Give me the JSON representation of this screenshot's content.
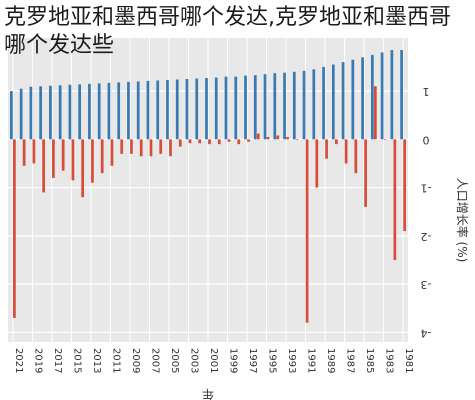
{
  "page": {
    "title": "克罗地亚和墨西哥哪个发达,克罗地亚和墨西哥哪个发达些"
  },
  "chart_data": {
    "type": "bar",
    "orientation": "rotated-180",
    "xlabel": "年",
    "ylabel": "人口增长率 (%)",
    "ylim": [
      -4.2,
      2.1
    ],
    "yticks": [
      -4,
      -3,
      -2,
      -1,
      0,
      1
    ],
    "grid": true,
    "colors": {
      "background": "#e8e8e8",
      "grid": "#ffffff",
      "series_blue": "#3a7ab0",
      "series_red": "#d64e3a",
      "axis_text": "#333333"
    },
    "categories": [
      "1981",
      "1982",
      "1983",
      "1984",
      "1985",
      "1986",
      "1987",
      "1988",
      "1989",
      "1990",
      "1991",
      "1992",
      "1993",
      "1994",
      "1995",
      "1996",
      "1997",
      "1998",
      "1999",
      "2000",
      "2001",
      "2002",
      "2003",
      "2004",
      "2005",
      "2006",
      "2007",
      "2008",
      "2009",
      "2010",
      "2011",
      "2012",
      "2013",
      "2014",
      "2015",
      "2016",
      "2017",
      "2018",
      "2019",
      "2020",
      "2021"
    ],
    "x_tick_labels": [
      "1981",
      "1983",
      "1985",
      "1987",
      "1989",
      "1991",
      "1993",
      "1995",
      "1997",
      "1999",
      "2001",
      "2003",
      "2005",
      "2007",
      "2009",
      "2011",
      "2013",
      "2015",
      "2017",
      "2019",
      "2021"
    ],
    "series": [
      {
        "color": "#3a7ab0",
        "values": [
          1.85,
          1.85,
          1.8,
          1.75,
          1.7,
          1.65,
          1.6,
          1.55,
          1.5,
          1.45,
          1.42,
          1.4,
          1.38,
          1.37,
          1.35,
          1.33,
          1.32,
          1.3,
          1.3,
          1.28,
          1.27,
          1.26,
          1.25,
          1.24,
          1.23,
          1.22,
          1.21,
          1.2,
          1.19,
          1.18,
          1.17,
          1.16,
          1.15,
          1.14,
          1.13,
          1.12,
          1.11,
          1.1,
          1.09,
          1.05,
          1.0
        ]
      },
      {
        "color": "#d64e3a",
        "values": [
          -1.9,
          -2.5,
          0.0,
          1.1,
          -1.4,
          -0.7,
          -0.5,
          -0.1,
          -0.4,
          -1.0,
          -3.8,
          0.0,
          0.05,
          0.08,
          0.05,
          0.12,
          -0.05,
          -0.1,
          -0.05,
          -0.1,
          -0.1,
          -0.08,
          -0.08,
          -0.15,
          -0.35,
          -0.3,
          -0.35,
          -0.35,
          -0.3,
          -0.3,
          -0.55,
          -0.7,
          -0.9,
          -1.2,
          -0.85,
          -0.65,
          -0.8,
          -1.1,
          -0.5,
          -0.55,
          -3.7
        ]
      }
    ]
  }
}
